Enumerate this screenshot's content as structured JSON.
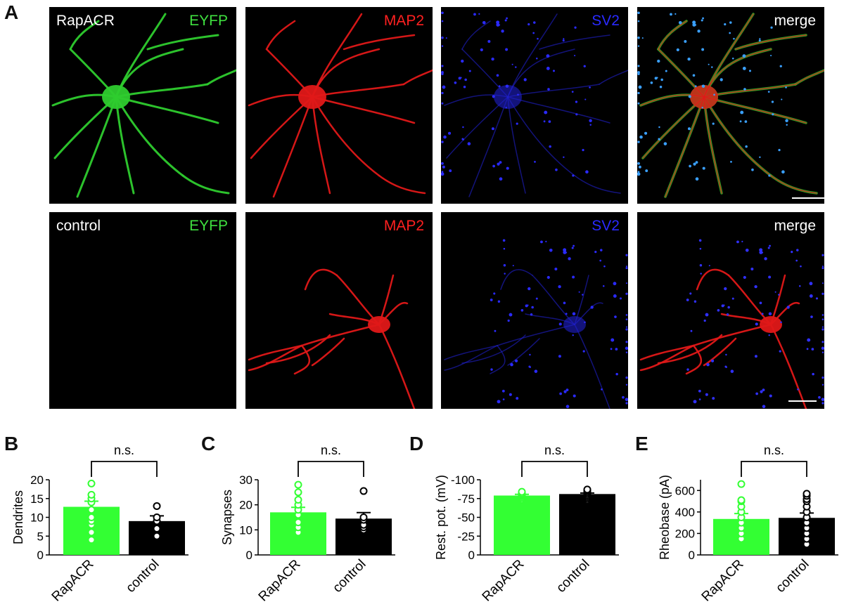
{
  "figure": {
    "panel_a_letter": "A",
    "rows": [
      {
        "panels": [
          {
            "left_label": "RapACR",
            "right_label": "EYFP",
            "channel": "green",
            "label_color": "#3fe03f",
            "has_scalebar": false
          },
          {
            "left_label": "",
            "right_label": "MAP2",
            "channel": "red",
            "label_color": "#ff2020",
            "has_scalebar": false
          },
          {
            "left_label": "",
            "right_label": "SV2",
            "channel": "blue",
            "label_color": "#2a2aff",
            "has_scalebar": false
          },
          {
            "left_label": "",
            "right_label": "merge",
            "channel": "merge",
            "label_color": "#ffffff",
            "has_scalebar": true
          }
        ]
      },
      {
        "panels": [
          {
            "left_label": "control",
            "right_label": "EYFP",
            "channel": "empty",
            "label_color": "#3fe03f",
            "has_scalebar": false
          },
          {
            "left_label": "",
            "right_label": "MAP2",
            "channel": "red2",
            "label_color": "#ff2020",
            "has_scalebar": false
          },
          {
            "left_label": "",
            "right_label": "SV2",
            "channel": "blue2",
            "label_color": "#2a2aff",
            "has_scalebar": false
          },
          {
            "left_label": "",
            "right_label": "merge",
            "channel": "merge2",
            "label_color": "#ffffff",
            "has_scalebar": true
          }
        ]
      }
    ]
  },
  "chart_data": [
    {
      "panel": "B",
      "type": "bar",
      "ylabel": "Dendrites",
      "ylim": [
        0,
        20
      ],
      "yticks": [
        0,
        5,
        10,
        15,
        20
      ],
      "categories": [
        "RapACR",
        "control"
      ],
      "values": [
        12.8,
        9.0
      ],
      "sem": [
        1.5,
        1.4
      ],
      "colors": [
        "#33ff33",
        "#000000"
      ],
      "marker_colors": [
        "#33ff33",
        "#000000"
      ],
      "points": [
        [
          4,
          6,
          8,
          9,
          10,
          12,
          14,
          15,
          16,
          19
        ],
        [
          5,
          7,
          9,
          10,
          13
        ]
      ],
      "significance": "n.s."
    },
    {
      "panel": "C",
      "type": "bar",
      "ylabel": "Synapses",
      "ylim": [
        0,
        30
      ],
      "yticks": [
        0,
        10,
        20,
        30
      ],
      "categories": [
        "RapACR",
        "control"
      ],
      "values": [
        17.0,
        14.5
      ],
      "sem": [
        2.0,
        2.4
      ],
      "colors": [
        "#33ff33",
        "#000000"
      ],
      "marker_colors": [
        "#33ff33",
        "#000000"
      ],
      "points": [
        [
          9,
          11,
          13,
          16,
          18,
          20,
          22,
          25,
          28
        ],
        [
          10,
          11,
          12,
          14,
          15,
          25.5
        ]
      ],
      "significance": "n.s."
    },
    {
      "panel": "D",
      "type": "bar",
      "ylabel": "Rest. pot. (mV)",
      "ylim": [
        0,
        -100
      ],
      "yticks": [
        0,
        -25,
        -50,
        -75,
        -100
      ],
      "categories": [
        "RapACR",
        "control"
      ],
      "values": [
        -79,
        -81
      ],
      "sem": [
        1.6,
        1.4
      ],
      "colors": [
        "#33ff33",
        "#000000"
      ],
      "marker_colors": [
        "#33ff33",
        "#000000"
      ],
      "points": [
        [
          -74,
          -76,
          -78,
          -79,
          -80,
          -81,
          -82,
          -84
        ],
        [
          -73,
          -75,
          -77,
          -79,
          -81,
          -83,
          -85,
          -86,
          -87
        ]
      ],
      "significance": "n.s."
    },
    {
      "panel": "E",
      "type": "bar",
      "ylabel": "Rheobase (pA)",
      "ylim": [
        0,
        700
      ],
      "yticks": [
        0,
        200,
        400,
        600
      ],
      "categories": [
        "RapACR",
        "control"
      ],
      "values": [
        335,
        345
      ],
      "sem": [
        50,
        45
      ],
      "colors": [
        "#33ff33",
        "#000000"
      ],
      "marker_colors": [
        "#33ff33",
        "#000000"
      ],
      "points": [
        [
          150,
          200,
          250,
          300,
          350,
          400,
          450,
          500,
          510,
          660
        ],
        [
          100,
          150,
          200,
          250,
          300,
          350,
          400,
          450,
          500,
          520,
          550,
          570
        ]
      ],
      "significance": "n.s."
    }
  ]
}
